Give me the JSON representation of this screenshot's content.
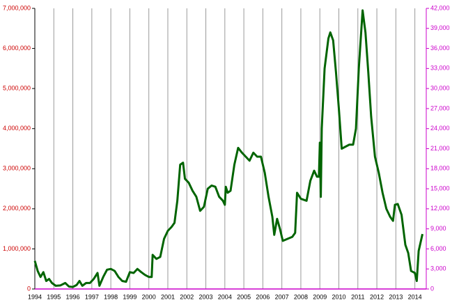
{
  "chart_data": {
    "type": "line",
    "x": [
      1994.0,
      1994.15,
      1994.3,
      1994.45,
      1994.6,
      1994.75,
      1994.9,
      1995.1,
      1995.35,
      1995.6,
      1995.8,
      1996.0,
      1996.2,
      1996.35,
      1996.5,
      1996.7,
      1996.9,
      1997.1,
      1997.3,
      1997.4,
      1997.6,
      1997.8,
      1998.0,
      1998.2,
      1998.4,
      1998.6,
      1998.8,
      1999.0,
      1999.2,
      1999.4,
      1999.6,
      1999.8,
      2000.0,
      2000.15,
      2000.2,
      2000.4,
      2000.6,
      2000.8,
      2001.0,
      2001.2,
      2001.35,
      2001.5,
      2001.65,
      2001.8,
      2001.9,
      2002.1,
      2002.3,
      2002.5,
      2002.7,
      2002.9,
      2003.1,
      2003.3,
      2003.5,
      2003.7,
      2003.9,
      2004.0,
      2004.05,
      2004.15,
      2004.3,
      2004.5,
      2004.7,
      2004.9,
      2005.1,
      2005.3,
      2005.5,
      2005.7,
      2005.9,
      2006.1,
      2006.3,
      2006.5,
      2006.6,
      2006.75,
      2006.9,
      2007.05,
      2007.3,
      2007.55,
      2007.7,
      2007.8,
      2008.0,
      2008.3,
      2008.5,
      2008.7,
      2008.85,
      2008.95,
      2009.0,
      2009.05,
      2009.1,
      2009.25,
      2009.45,
      2009.55,
      2009.7,
      2009.85,
      2010.0,
      2010.15,
      2010.35,
      2010.55,
      2010.75,
      2010.9,
      2011.05,
      2011.25,
      2011.4,
      2011.55,
      2011.7,
      2011.9,
      2012.1,
      2012.3,
      2012.5,
      2012.7,
      2012.85,
      2012.95,
      2013.1,
      2013.3,
      2013.5,
      2013.65,
      2013.8,
      2014.0,
      2014.1,
      2014.2,
      2014.4
    ],
    "values": [
      700000,
      450000,
      300000,
      420000,
      200000,
      250000,
      150000,
      80000,
      90000,
      150000,
      60000,
      50000,
      100000,
      200000,
      80000,
      150000,
      150000,
      250000,
      400000,
      80000,
      300000,
      480000,
      500000,
      450000,
      300000,
      200000,
      180000,
      420000,
      400000,
      500000,
      420000,
      350000,
      300000,
      300000,
      850000,
      750000,
      800000,
      1250000,
      1450000,
      1550000,
      1650000,
      2200000,
      3100000,
      3150000,
      2750000,
      2650000,
      2450000,
      2300000,
      1950000,
      2050000,
      2500000,
      2580000,
      2550000,
      2300000,
      2200000,
      2100000,
      2550000,
      2400000,
      2450000,
      3100000,
      3520000,
      3400000,
      3300000,
      3200000,
      3400000,
      3300000,
      3300000,
      2900000,
      2300000,
      1800000,
      1350000,
      1750000,
      1500000,
      1200000,
      1250000,
      1300000,
      1400000,
      2400000,
      2250000,
      2200000,
      2700000,
      2950000,
      2800000,
      2800000,
      3650000,
      2300000,
      4000000,
      5500000,
      6250000,
      6400000,
      6200000,
      5400000,
      4500000,
      3500000,
      3550000,
      3600000,
      3600000,
      4000000,
      5500000,
      6950000,
      6400000,
      5400000,
      4300000,
      3300000,
      2900000,
      2400000,
      2000000,
      1800000,
      1700000,
      2100000,
      2120000,
      1850000,
      1100000,
      900000,
      450000,
      400000,
      200000,
      950000,
      1370000
    ],
    "color": "#006400",
    "xlim": [
      1994,
      2014.6
    ],
    "xticks": [
      1994,
      1995,
      1996,
      1997,
      1998,
      1999,
      2000,
      2001,
      2002,
      2003,
      2004,
      2005,
      2006,
      2007,
      2008,
      2009,
      2010,
      2011,
      2012,
      2013,
      2014
    ],
    "ylim": [
      0,
      7000000
    ],
    "yticks": [
      0,
      {
        "value": 1000000,
        "label": "1,000,000"
      },
      {
        "value": 2000000,
        "label": "2,000,000"
      },
      {
        "value": 3000000,
        "label": "3,000,000"
      },
      {
        "value": 4000000,
        "label": "4,000,000"
      },
      {
        "value": 5000000,
        "label": "5,000,000"
      },
      {
        "value": 6000000,
        "label": "6,000,000"
      },
      {
        "value": 7000000,
        "label": "7,000,000"
      }
    ],
    "y2lim": [
      0,
      42000
    ],
    "y2ticks": [
      0,
      {
        "value": 3000,
        "label": "3,000"
      },
      {
        "value": 6000,
        "label": "6,000"
      },
      {
        "value": 9000,
        "label": "9,000"
      },
      {
        "value": 12000,
        "label": "12,000"
      },
      {
        "value": 15000,
        "label": "15,000"
      },
      {
        "value": 18000,
        "label": "18,000"
      },
      {
        "value": 21000,
        "label": "21,000"
      },
      {
        "value": 24000,
        "label": "24,000"
      },
      {
        "value": 27000,
        "label": "27,000"
      },
      {
        "value": 30000,
        "label": "30,000"
      },
      {
        "value": 33000,
        "label": "33,000"
      },
      {
        "value": 36000,
        "label": "36,000"
      },
      {
        "value": 39000,
        "label": "39,000"
      },
      {
        "value": 42000,
        "label": "42,000"
      }
    ],
    "y_color": "#cc0000",
    "y2_color": "#cc00cc",
    "grid": "x"
  }
}
